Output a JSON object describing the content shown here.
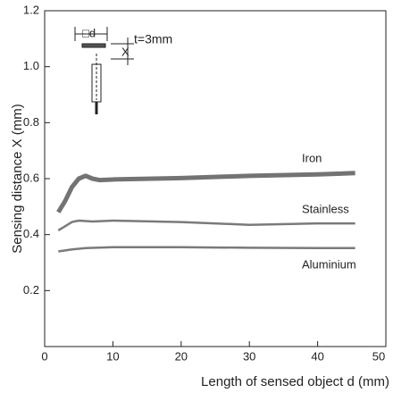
{
  "chart_data": {
    "type": "line",
    "x_label": "Length of sensed object d (mm)",
    "y_label": "Sensing distance X (mm)",
    "xlim": [
      0,
      50
    ],
    "ylim": [
      0,
      1.2
    ],
    "xticks": [
      0,
      10,
      20,
      30,
      40,
      50
    ],
    "yticks": [
      0.2,
      0.4,
      0.6,
      0.8,
      {
        "value": 1,
        "label": "1.0"
      },
      1.2
    ],
    "grid": false,
    "inset_labels": [
      "□d",
      "X",
      "t=3mm"
    ],
    "series": [
      {
        "name": "Iron",
        "color": "#737373",
        "width": 5,
        "x": [
          2,
          3,
          4,
          5,
          6,
          7,
          8,
          10,
          20,
          30,
          40,
          45.5
        ],
        "values": [
          0.48,
          0.52,
          0.57,
          0.6,
          0.61,
          0.6,
          0.595,
          0.597,
          0.602,
          0.61,
          0.615,
          0.62
        ]
      },
      {
        "name": "Stainless",
        "color": "#7a7a7a",
        "width": 2.5,
        "x": [
          2,
          3,
          4,
          5,
          7,
          10,
          20,
          30,
          40,
          45.5
        ],
        "values": [
          0.415,
          0.43,
          0.445,
          0.45,
          0.447,
          0.45,
          0.445,
          0.435,
          0.44,
          0.44
        ]
      },
      {
        "name": "Aluminium",
        "color": "#7a7a7a",
        "width": 2.5,
        "x": [
          2,
          4,
          6,
          10,
          20,
          30,
          40,
          45.5
        ],
        "values": [
          0.34,
          0.347,
          0.352,
          0.355,
          0.355,
          0.353,
          0.352,
          0.352
        ]
      }
    ]
  }
}
